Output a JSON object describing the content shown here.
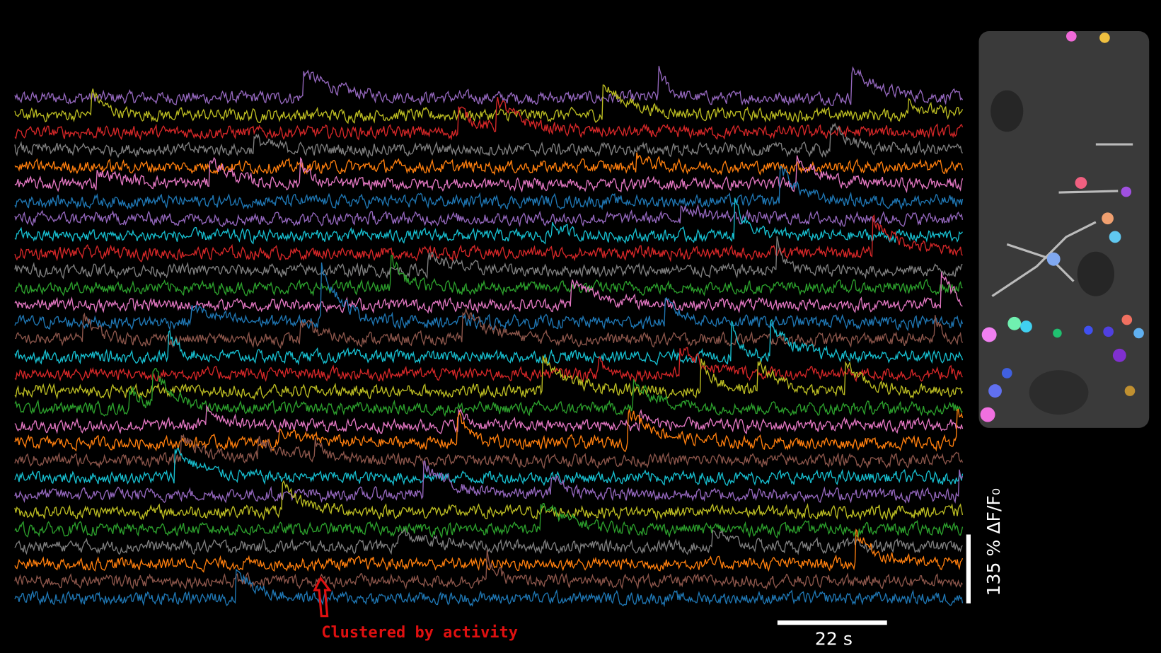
{
  "annotation": "Clustered by activity",
  "scale_bars": {
    "time": "22 s",
    "amplitude": "135 % ΔF/F₀"
  },
  "trace_colors": [
    "#9467bd",
    "#bcbd22",
    "#d62728",
    "#7f7f7f",
    "#ff7f0e",
    "#e377c2",
    "#1f77b4",
    "#9467bd",
    "#17becf",
    "#d62728",
    "#7f7f7f",
    "#2ca02c",
    "#e377c2",
    "#1f77b4",
    "#8c564b",
    "#17becf",
    "#d62728",
    "#bcbd22",
    "#2ca02c",
    "#e377c2",
    "#ff7f0e",
    "#8c564b",
    "#17becf",
    "#9467bd",
    "#bcbd22",
    "#2ca02c",
    "#7f7f7f",
    "#ff7f0e",
    "#8c564b",
    "#1f77b4"
  ]
}
